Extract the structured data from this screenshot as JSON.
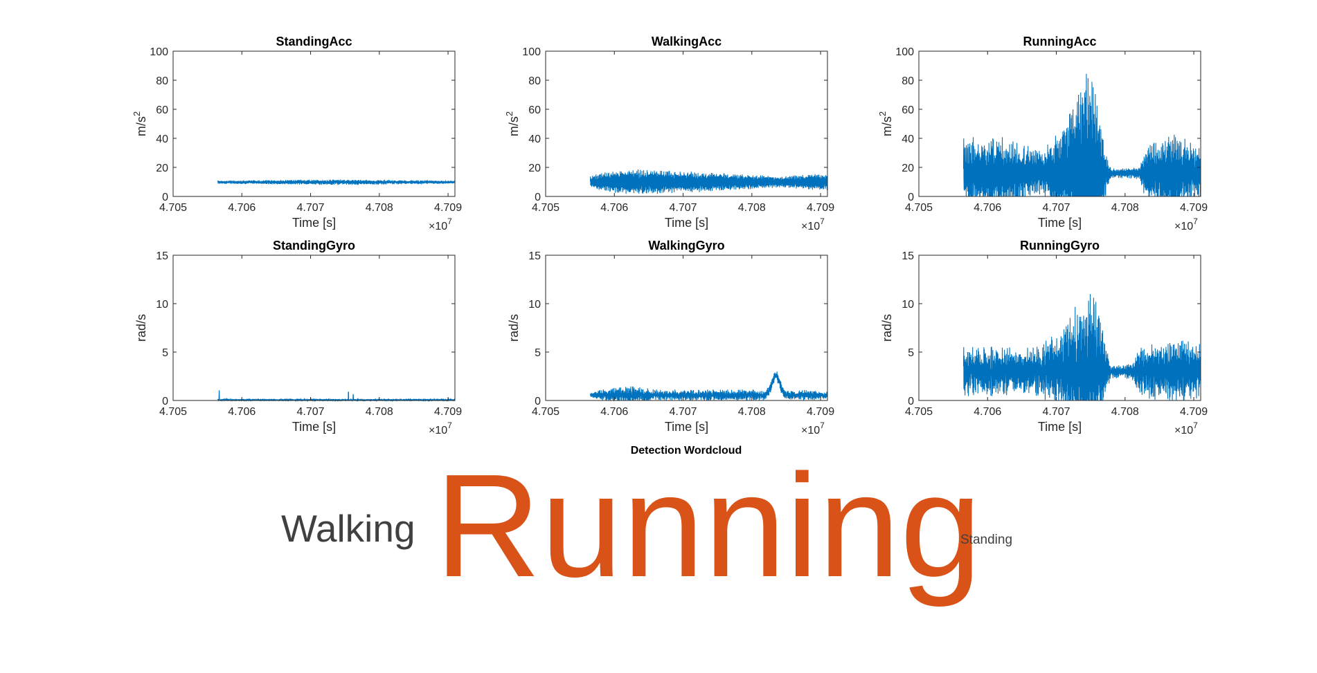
{
  "figure_colors": {
    "line": "#0072BD",
    "axis": "#262626",
    "word_primary": "#D95319",
    "word_secondary": "#404040"
  },
  "chart_data": [
    {
      "type": "line",
      "title": "StandingAcc",
      "xlabel": "Time [s]",
      "ylabel": "m/s",
      "ylabel_sup": "2",
      "x_multiplier_base": "×10",
      "x_multiplier_exp": "7",
      "xlim": [
        4.705,
        4.7091
      ],
      "ylim": [
        0,
        100
      ],
      "xticks": [
        4.705,
        4.706,
        4.707,
        4.708,
        4.709
      ],
      "xtick_labels": [
        "4.705",
        "4.706",
        "4.707",
        "4.708",
        "4.709"
      ],
      "yticks": [
        0,
        20,
        40,
        60,
        80,
        100
      ],
      "series": [
        {
          "x_start": 4.70565,
          "x_end": 4.7091,
          "baseline": 9.8,
          "amplitude": 0.7,
          "noise": 0.4,
          "envelope": [
            [
              4.70565,
              1
            ],
            [
              4.7075,
              1.8
            ],
            [
              4.7091,
              1
            ]
          ]
        }
      ]
    },
    {
      "type": "line",
      "title": "WalkingAcc",
      "xlabel": "Time [s]",
      "ylabel": "m/s",
      "ylabel_sup": "2",
      "x_multiplier_base": "×10",
      "x_multiplier_exp": "7",
      "xlim": [
        4.705,
        4.7091
      ],
      "ylim": [
        0,
        100
      ],
      "xticks": [
        4.705,
        4.706,
        4.707,
        4.708,
        4.709
      ],
      "xtick_labels": [
        "4.705",
        "4.706",
        "4.707",
        "4.708",
        "4.709"
      ],
      "yticks": [
        0,
        20,
        40,
        60,
        80,
        100
      ],
      "series": [
        {
          "x_start": 4.70565,
          "x_end": 4.7091,
          "baseline": 10,
          "amplitude": 5,
          "noise": 1.5,
          "envelope": [
            [
              4.70565,
              0.6
            ],
            [
              4.7058,
              1
            ],
            [
              4.7062,
              1.4
            ],
            [
              4.7075,
              1
            ],
            [
              4.7084,
              0.6
            ],
            [
              4.7088,
              0.8
            ],
            [
              4.7091,
              0.9
            ]
          ]
        }
      ]
    },
    {
      "type": "line",
      "title": "RunningAcc",
      "xlabel": "Time [s]",
      "ylabel": "m/s",
      "ylabel_sup": "2",
      "x_multiplier_base": "×10",
      "x_multiplier_exp": "7",
      "xlim": [
        4.705,
        4.7091
      ],
      "ylim": [
        0,
        100
      ],
      "xticks": [
        4.705,
        4.706,
        4.707,
        4.708,
        4.709
      ],
      "xtick_labels": [
        "4.705",
        "4.706",
        "4.707",
        "4.708",
        "4.709"
      ],
      "yticks": [
        0,
        20,
        40,
        60,
        80,
        100
      ],
      "series": [
        {
          "x_start": 4.70565,
          "x_end": 4.7091,
          "baseline": 16,
          "amplitude": 11,
          "noise": 5,
          "envelope": [
            [
              4.70565,
              1.6
            ],
            [
              4.7062,
              1.6
            ],
            [
              4.7068,
              1
            ],
            [
              4.7071,
              2.2
            ],
            [
              4.7074,
              4.5
            ],
            [
              4.70755,
              4.2
            ],
            [
              4.7077,
              1.2
            ],
            [
              4.7078,
              0.2
            ],
            [
              4.7082,
              0.25
            ],
            [
              4.7083,
              1.2
            ],
            [
              4.7087,
              1.8
            ],
            [
              4.7091,
              1.2
            ]
          ]
        }
      ]
    },
    {
      "type": "line",
      "title": "StandingGyro",
      "xlabel": "Time [s]",
      "ylabel": "rad/s",
      "x_multiplier_base": "×10",
      "x_multiplier_exp": "7",
      "xlim": [
        4.705,
        4.7091
      ],
      "ylim": [
        0,
        15
      ],
      "xticks": [
        4.705,
        4.706,
        4.707,
        4.708,
        4.709
      ],
      "xtick_labels": [
        "4.705",
        "4.706",
        "4.707",
        "4.708",
        "4.709"
      ],
      "yticks": [
        0,
        5,
        10,
        15
      ],
      "series": [
        {
          "x_start": 4.70565,
          "x_end": 4.7091,
          "baseline": 0.06,
          "amplitude": 0.04,
          "noise": 0.05,
          "envelope": [
            [
              4.70565,
              1
            ],
            [
              4.7091,
              1
            ]
          ],
          "spikes": [
            [
              4.70567,
              0.95
            ],
            [
              4.70755,
              0.8
            ],
            [
              4.70762,
              0.6
            ]
          ]
        }
      ]
    },
    {
      "type": "line",
      "title": "WalkingGyro",
      "xlabel": "Time [s]",
      "ylabel": "rad/s",
      "x_multiplier_base": "×10",
      "x_multiplier_exp": "7",
      "xlim": [
        4.705,
        4.7091
      ],
      "ylim": [
        0,
        15
      ],
      "xticks": [
        4.705,
        4.706,
        4.707,
        4.708,
        4.709
      ],
      "xtick_labels": [
        "4.705",
        "4.706",
        "4.707",
        "4.708",
        "4.709"
      ],
      "yticks": [
        0,
        5,
        10,
        15
      ],
      "series": [
        {
          "x_start": 4.70565,
          "x_end": 4.7091,
          "baseline": 0.55,
          "amplitude": 0.35,
          "noise": 0.25,
          "envelope": [
            [
              4.70565,
              0.3
            ],
            [
              4.7058,
              1
            ],
            [
              4.7062,
              1.8
            ],
            [
              4.7066,
              1
            ],
            [
              4.7083,
              1
            ],
            [
              4.7091,
              0.8
            ]
          ],
          "bumps": [
            [
              4.70835,
              2.0,
              8e-05
            ]
          ]
        }
      ]
    },
    {
      "type": "line",
      "title": "RunningGyro",
      "xlabel": "Time [s]",
      "ylabel": "rad/s",
      "x_multiplier_base": "×10",
      "x_multiplier_exp": "7",
      "xlim": [
        4.705,
        4.7091
      ],
      "ylim": [
        0,
        15
      ],
      "xticks": [
        4.705,
        4.706,
        4.707,
        4.708,
        4.709
      ],
      "xtick_labels": [
        "4.705",
        "4.706",
        "4.707",
        "4.708",
        "4.709"
      ],
      "yticks": [
        0,
        5,
        10,
        15
      ],
      "series": [
        {
          "x_start": 4.70565,
          "x_end": 4.7091,
          "baseline": 3.0,
          "amplitude": 1.8,
          "noise": 1.0,
          "envelope": [
            [
              4.70565,
              1
            ],
            [
              4.7067,
              0.9
            ],
            [
              4.7071,
              1.6
            ],
            [
              4.7074,
              3.2
            ],
            [
              4.70755,
              3.5
            ],
            [
              4.7077,
              1.3
            ],
            [
              4.7078,
              0.25
            ],
            [
              4.7081,
              0.3
            ],
            [
              4.7082,
              0.9
            ],
            [
              4.7087,
              1.3
            ],
            [
              4.7091,
              1
            ]
          ]
        }
      ]
    }
  ],
  "wordcloud": {
    "title": "Detection Wordcloud",
    "words": [
      {
        "text": "Walking",
        "size": "small",
        "color": "#404040"
      },
      {
        "text": "Running",
        "size": "large",
        "color": "#D95319"
      },
      {
        "text": "Standing",
        "size": "tiny",
        "color": "#404040"
      }
    ]
  }
}
